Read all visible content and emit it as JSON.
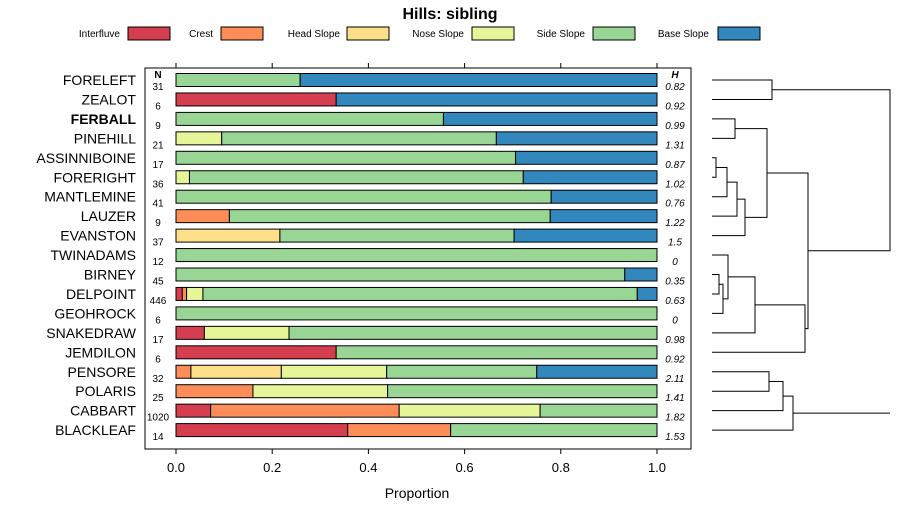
{
  "chart_data": {
    "type": "bar",
    "stacked": true,
    "orientation": "horizontal",
    "title": "Hills: sibling",
    "xlabel": "Proportion",
    "xlim": [
      0,
      1
    ],
    "xticks": [
      "0.0",
      "0.2",
      "0.4",
      "0.6",
      "0.8",
      "1.0"
    ],
    "n_header": "N",
    "h_header": "H",
    "highlight": "FERBALL",
    "legend": [
      {
        "name": "Interfluve",
        "color": "#d53e4f"
      },
      {
        "name": "Crest",
        "color": "#fc8d59"
      },
      {
        "name": "Head Slope",
        "color": "#fee08b"
      },
      {
        "name": "Nose Slope",
        "color": "#e6f598"
      },
      {
        "name": "Side Slope",
        "color": "#99d594"
      },
      {
        "name": "Base Slope",
        "color": "#3288bd"
      }
    ],
    "rows": [
      {
        "label": "FORELEFT",
        "n": "31",
        "h": "0.82",
        "values": [
          0,
          0,
          0,
          0,
          0.258,
          0.742
        ]
      },
      {
        "label": "ZEALOT",
        "n": "6",
        "h": "0.92",
        "values": [
          0.333,
          0,
          0,
          0,
          0,
          0.667
        ]
      },
      {
        "label": "FERBALL",
        "n": "9",
        "h": "0.99",
        "values": [
          0,
          0,
          0,
          0,
          0.556,
          0.444
        ]
      },
      {
        "label": "PINEHILL",
        "n": "21",
        "h": "1.31",
        "values": [
          0,
          0,
          0,
          0.095,
          0.571,
          0.334
        ]
      },
      {
        "label": "ASSINNIBOINE",
        "n": "17",
        "h": "0.87",
        "values": [
          0,
          0,
          0,
          0,
          0.706,
          0.294
        ]
      },
      {
        "label": "FORERIGHT",
        "n": "36",
        "h": "1.02",
        "values": [
          0,
          0,
          0,
          0.028,
          0.694,
          0.278
        ]
      },
      {
        "label": "MANTLEMINE",
        "n": "41",
        "h": "0.76",
        "values": [
          0,
          0,
          0,
          0,
          0.78,
          0.22
        ]
      },
      {
        "label": "LAUZER",
        "n": "9",
        "h": "1.22",
        "values": [
          0,
          0.111,
          0,
          0,
          0.667,
          0.222
        ]
      },
      {
        "label": "EVANSTON",
        "n": "37",
        "h": "1.5",
        "values": [
          0,
          0,
          0.216,
          0,
          0.487,
          0.297
        ]
      },
      {
        "label": "TWINADAMS",
        "n": "12",
        "h": "0",
        "values": [
          0,
          0,
          0,
          0,
          1.0,
          0
        ]
      },
      {
        "label": "BIRNEY",
        "n": "45",
        "h": "0.35",
        "values": [
          0,
          0,
          0,
          0,
          0.933,
          0.067
        ]
      },
      {
        "label": "DELPOINT",
        "n": "446",
        "h": "0.63",
        "values": [
          0.013,
          0.009,
          0,
          0.034,
          0.903,
          0.041
        ]
      },
      {
        "label": "GEOHROCK",
        "n": "6",
        "h": "0",
        "values": [
          0,
          0,
          0,
          0,
          1.0,
          0
        ]
      },
      {
        "label": "SNAKEDRAW",
        "n": "17",
        "h": "0.98",
        "values": [
          0.059,
          0,
          0,
          0.176,
          0.765,
          0
        ]
      },
      {
        "label": "JEMDILON",
        "n": "6",
        "h": "0.92",
        "values": [
          0.333,
          0,
          0,
          0,
          0.667,
          0
        ]
      },
      {
        "label": "PENSORE",
        "n": "32",
        "h": "2.11",
        "values": [
          0,
          0.031,
          0.188,
          0.219,
          0.312,
          0.25
        ]
      },
      {
        "label": "POLARIS",
        "n": "25",
        "h": "1.41",
        "values": [
          0,
          0.16,
          0,
          0.28,
          0.56,
          0
        ]
      },
      {
        "label": "CABBART",
        "n": "1020",
        "h": "1.82",
        "values": [
          0.072,
          0.392,
          0,
          0.293,
          0.243,
          0
        ]
      },
      {
        "label": "BLACKLEAF",
        "n": "14",
        "h": "1.53",
        "values": [
          0.357,
          0.214,
          0,
          0,
          0.429,
          0
        ]
      }
    ]
  }
}
